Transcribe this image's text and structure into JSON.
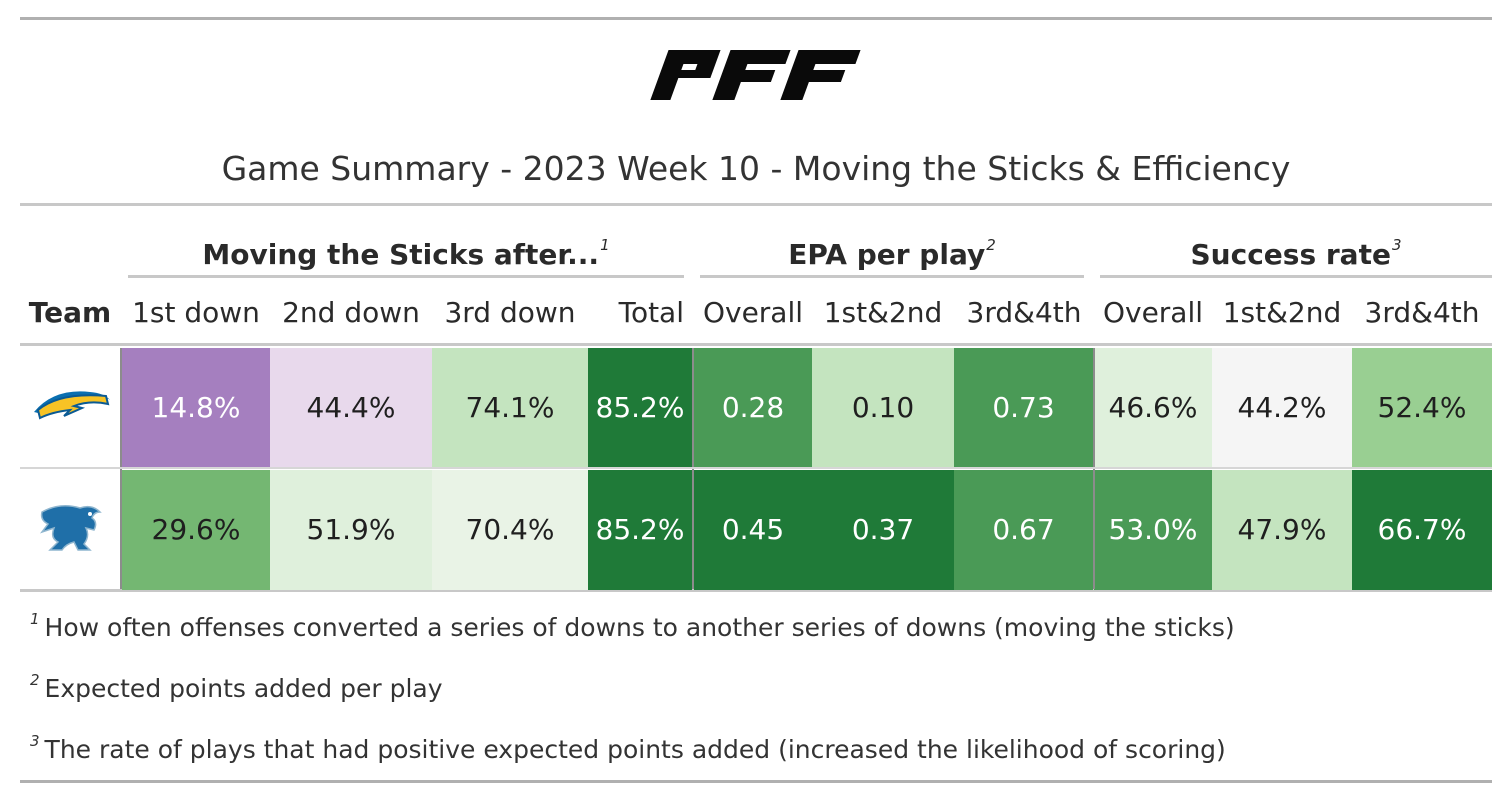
{
  "brand": "PFF",
  "title": "Game Summary - 2023 Week 10 - Moving the Sticks & Efficiency",
  "spanners": [
    {
      "label": "Moving the Sticks after...",
      "note": "1"
    },
    {
      "label": "EPA per play",
      "note": "2"
    },
    {
      "label": "Success rate",
      "note": "3"
    }
  ],
  "columns": [
    "Team",
    "1st down",
    "2nd down",
    "3rd down",
    "Total",
    "Overall",
    "1st&2nd",
    "3rd&4th",
    "Overall",
    "1st&2nd",
    "3rd&4th"
  ],
  "rows": [
    {
      "team_logo": "chargers-logo-icon",
      "values": [
        "14.8%",
        "44.4%",
        "74.1%",
        "85.2%",
        "0.28",
        "0.10",
        "0.73",
        "46.6%",
        "44.2%",
        "52.4%"
      ],
      "fills": [
        "#a57fbf",
        "#e8d9ec",
        "#c4e4bf",
        "#1f7a38",
        "#4a9a56",
        "#c4e4bf",
        "#4a9a56",
        "#dff0dc",
        "#f5f5f5",
        "#99cf92"
      ],
      "text_colors": [
        "#ffffff",
        "#1f1f1f",
        "#1f1f1f",
        "#ffffff",
        "#ffffff",
        "#1f1f1f",
        "#ffffff",
        "#1f1f1f",
        "#1f1f1f",
        "#1f1f1f"
      ]
    },
    {
      "team_logo": "lions-logo-icon",
      "values": [
        "29.6%",
        "51.9%",
        "70.4%",
        "85.2%",
        "0.45",
        "0.37",
        "0.67",
        "53.0%",
        "47.9%",
        "66.7%"
      ],
      "fills": [
        "#74b772",
        "#dff0dc",
        "#e9f3e6",
        "#1f7a38",
        "#1f7a38",
        "#1f7a38",
        "#4a9a56",
        "#4a9a56",
        "#c4e4bf",
        "#1f7a38"
      ],
      "text_colors": [
        "#1f1f1f",
        "#1f1f1f",
        "#1f1f1f",
        "#ffffff",
        "#ffffff",
        "#ffffff",
        "#ffffff",
        "#ffffff",
        "#1f1f1f",
        "#ffffff"
      ]
    }
  ],
  "footnotes": [
    {
      "mark": "1",
      "text": "How often offenses converted a series of downs to another series of downs (moving the sticks)"
    },
    {
      "mark": "2",
      "text": "Expected points added per play"
    },
    {
      "mark": "3",
      "text": "The rate of plays that had positive expected points added (increased the likelihood of scoring)"
    }
  ],
  "chart_data": {
    "type": "table",
    "title": "Game Summary - 2023 Week 10 - Moving the Sticks & Efficiency",
    "column_groups": [
      {
        "name": "Moving the Sticks after...",
        "columns": [
          "1st down",
          "2nd down",
          "3rd down",
          "Total"
        ]
      },
      {
        "name": "EPA per play",
        "columns": [
          "Overall",
          "1st&2nd",
          "3rd&4th"
        ]
      },
      {
        "name": "Success rate",
        "columns": [
          "Overall",
          "1st&2nd",
          "3rd&4th"
        ]
      }
    ],
    "rows": [
      {
        "team_logo": "chargers-logo-icon",
        "moving_the_sticks_pct": [
          14.8,
          44.4,
          74.1,
          85.2
        ],
        "epa_per_play": [
          0.28,
          0.1,
          0.73
        ],
        "success_rate_pct": [
          46.6,
          44.2,
          52.4
        ]
      },
      {
        "team_logo": "lions-logo-icon",
        "moving_the_sticks_pct": [
          29.6,
          51.9,
          70.4,
          85.2
        ],
        "epa_per_play": [
          0.45,
          0.37,
          0.67
        ],
        "success_rate_pct": [
          53.0,
          47.9,
          66.7
        ]
      }
    ]
  }
}
